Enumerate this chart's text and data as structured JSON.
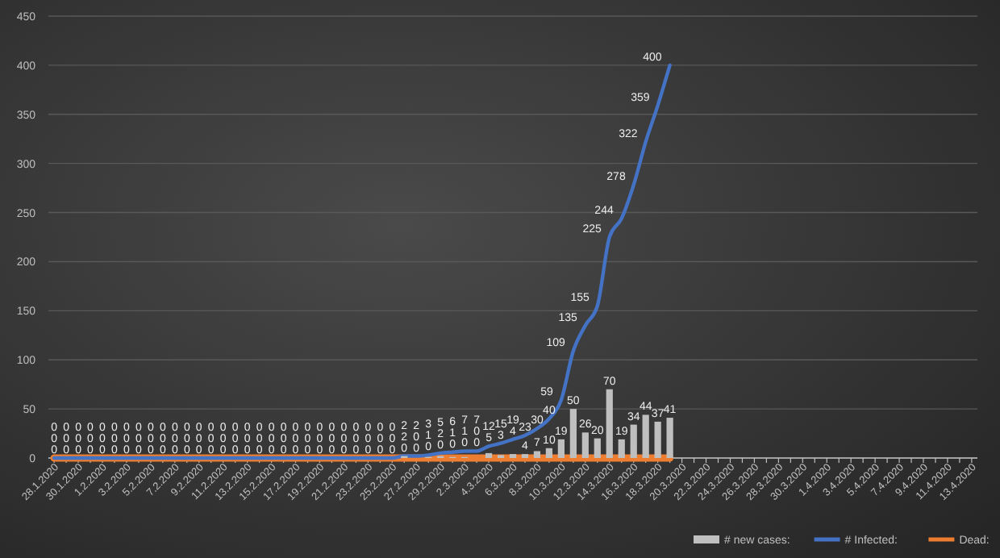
{
  "chart_data": {
    "type": "bar",
    "categories": [
      "28.1.2020",
      null,
      "30.1.2020",
      null,
      "1.2.2020",
      null,
      "3.2.2020",
      null,
      "5.2.2020",
      null,
      "7.2.2020",
      null,
      "9.2.2020",
      null,
      "11.2.2020",
      null,
      "13.2.2020",
      null,
      "15.2.2020",
      null,
      "17.2.2020",
      null,
      "19.2.2020",
      null,
      "21.2.2020",
      null,
      "23.2.2020",
      null,
      "25.2.2020",
      null,
      "27.2.2020",
      null,
      "29.2.2020",
      null,
      "2.3.2020",
      null,
      "4.3.2020",
      null,
      "6.3.2020",
      null,
      "8.3.2020",
      null,
      "10.3.2020",
      null,
      "12.3.2020",
      null,
      "14.3.2020",
      null,
      "16.3.2020",
      null,
      "18.3.2020",
      null,
      "20.3.2020",
      null,
      "22.3.2020",
      null,
      "24.3.2020",
      null,
      "26.3.2020",
      null,
      "28.3.2020",
      null,
      "30.3.2020",
      null,
      "1.4.2020",
      null,
      "3.4.2020",
      null,
      "5.4.2020",
      null,
      "7.4.2020",
      null,
      "9.4.2020",
      null,
      "11.4.2020",
      null,
      "13.4.2020"
    ],
    "series": [
      {
        "name": "# new cases:",
        "color": "#bfbfbf",
        "values": [
          0,
          0,
          0,
          0,
          0,
          0,
          0,
          0,
          0,
          0,
          0,
          0,
          0,
          0,
          0,
          0,
          0,
          0,
          0,
          0,
          0,
          0,
          0,
          0,
          0,
          0,
          0,
          0,
          0,
          2,
          0,
          1,
          2,
          1,
          1,
          0,
          5,
          3,
          4,
          4,
          7,
          10,
          19,
          50,
          26,
          20,
          70,
          19,
          34,
          44,
          37,
          41,
          null,
          null,
          null,
          null,
          null,
          null,
          null,
          null,
          null,
          null,
          null,
          null,
          null,
          null,
          null,
          null,
          null,
          null,
          null,
          null,
          null,
          null,
          null,
          null,
          null
        ],
        "value_labels": [
          "0",
          "0",
          "0",
          "0",
          "0",
          "0",
          "0",
          "0",
          "0",
          "0",
          "0",
          "0",
          "0",
          "0",
          "0",
          "0",
          "0",
          "0",
          "0",
          "0",
          "0",
          "0",
          "0",
          "0",
          "0",
          "0",
          "0",
          "0",
          "0",
          "2",
          "0",
          "1",
          "2",
          "1",
          "1",
          "0",
          "5",
          "3",
          "4",
          "4",
          "7",
          "10",
          "19",
          "50",
          "26",
          "20",
          "70",
          "19",
          "34",
          "44",
          "37",
          "41",
          null,
          null,
          null,
          null,
          null,
          null,
          null,
          null,
          null,
          null,
          null,
          null,
          null,
          null,
          null,
          null,
          null,
          null,
          null,
          null,
          null,
          null,
          null,
          null,
          null
        ]
      },
      {
        "name": "# Infected:",
        "type": "line",
        "color": "#4472c4",
        "values": [
          0,
          0,
          0,
          0,
          0,
          0,
          0,
          0,
          0,
          0,
          0,
          0,
          0,
          0,
          0,
          0,
          0,
          0,
          0,
          0,
          0,
          0,
          0,
          0,
          0,
          0,
          0,
          0,
          0,
          2,
          2,
          3,
          5,
          6,
          7,
          7,
          12,
          15,
          19,
          23,
          30,
          40,
          59,
          109,
          135,
          155,
          225,
          244,
          278,
          322,
          359,
          400,
          null,
          null,
          null,
          null,
          null,
          null,
          null,
          null,
          null,
          null,
          null,
          null,
          null,
          null,
          null,
          null,
          null,
          null,
          null,
          null,
          null,
          null,
          null,
          null,
          null
        ],
        "value_labels": [
          "0",
          "0",
          "0",
          "0",
          "0",
          "0",
          "0",
          "0",
          "0",
          "0",
          "0",
          "0",
          "0",
          "0",
          "0",
          "0",
          "0",
          "0",
          "0",
          "0",
          "0",
          "0",
          "0",
          "0",
          "0",
          "0",
          "0",
          "0",
          "0",
          "2",
          "2",
          "3",
          "5",
          "6",
          "7",
          "7",
          "12",
          "15",
          "19",
          "23",
          "30",
          "40",
          "59",
          "109",
          "135",
          "155",
          "225",
          "244",
          "278",
          "322",
          "359",
          "400",
          null,
          null,
          null,
          null,
          null,
          null,
          null,
          null,
          null,
          null,
          null,
          null,
          null,
          null,
          null,
          null,
          null,
          null,
          null,
          null,
          null,
          null,
          null,
          null,
          null
        ]
      },
      {
        "name": "Dead:",
        "type": "line",
        "color": "#ed7d31",
        "values": [
          0,
          0,
          0,
          0,
          0,
          0,
          0,
          0,
          0,
          0,
          0,
          0,
          0,
          0,
          0,
          0,
          0,
          0,
          0,
          0,
          0,
          0,
          0,
          0,
          0,
          0,
          0,
          0,
          0,
          0,
          0,
          0,
          0,
          0,
          0,
          0,
          0,
          0,
          0,
          0,
          0,
          0,
          0,
          0,
          0,
          0,
          0,
          0,
          0,
          0,
          0,
          0,
          null,
          null,
          null,
          null,
          null,
          null,
          null,
          null,
          null,
          null,
          null,
          null,
          null,
          null,
          null,
          null,
          null,
          null,
          null,
          null,
          null,
          null,
          null,
          null,
          null
        ],
        "value_labels": [
          "0",
          "0",
          "0",
          "0",
          "0",
          "0",
          "0",
          "0",
          "0",
          "0",
          "0",
          "0",
          "0",
          "0",
          "0",
          "0",
          "0",
          "0",
          "0",
          "0",
          "0",
          "0",
          "0",
          "0",
          "0",
          "0",
          "0",
          "0",
          "0",
          "0",
          "0",
          "0",
          "0",
          "0",
          "0",
          "0",
          null,
          null,
          null,
          null,
          null,
          null,
          null,
          null,
          null,
          null,
          null,
          null,
          null,
          null,
          null,
          null,
          null,
          null,
          null,
          null,
          null,
          null,
          null,
          null,
          null,
          null,
          null,
          null,
          null,
          null,
          null,
          null,
          null,
          null,
          null,
          null,
          null,
          null,
          null,
          null,
          null
        ]
      }
    ],
    "ylim": [
      0,
      450
    ],
    "yticks": [
      0,
      50,
      100,
      150,
      200,
      250,
      300,
      350,
      400,
      450
    ],
    "grid": "y",
    "legend": "bottom right"
  }
}
